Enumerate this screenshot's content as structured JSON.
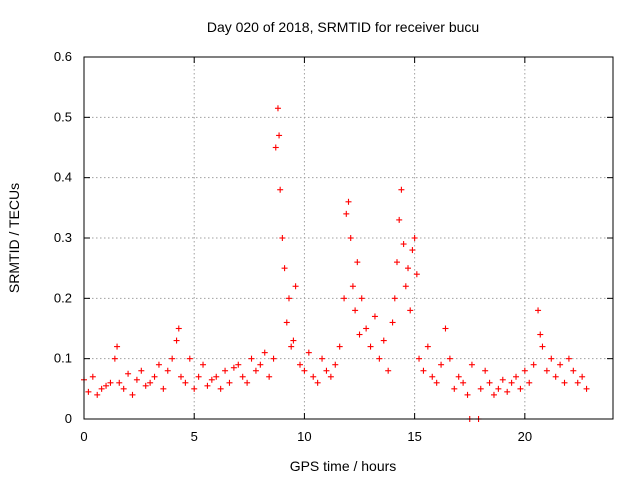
{
  "chart_data": {
    "type": "scatter",
    "title": "Day 020 of 2018, SRMTID for receiver bucu",
    "xlabel": "GPS time / hours",
    "ylabel": "SRMTID / TECUs",
    "xlim": [
      0,
      24
    ],
    "ylim": [
      0,
      0.6
    ],
    "xticks": [
      0,
      5,
      10,
      15,
      20
    ],
    "xtick_labels": [
      "0",
      "5",
      "10",
      "15",
      "20"
    ],
    "yticks": [
      0,
      0.1,
      0.2,
      0.3,
      0.4,
      0.5,
      0.6
    ],
    "ytick_labels": [
      "0",
      "0.1",
      "0.2",
      "0.3",
      "0.4",
      "0.5",
      "0.6"
    ],
    "grid": true,
    "marker": "+",
    "marker_color": "#ff0000",
    "series": [
      {
        "name": "SRMTID",
        "x": [
          0.0,
          0.2,
          0.4,
          0.6,
          0.8,
          1.0,
          1.2,
          1.4,
          1.5,
          1.6,
          1.8,
          2.0,
          2.2,
          2.4,
          2.6,
          2.8,
          3.0,
          3.2,
          3.4,
          3.6,
          3.8,
          4.0,
          4.2,
          4.3,
          4.4,
          4.6,
          4.8,
          5.0,
          5.2,
          5.4,
          5.6,
          5.8,
          6.0,
          6.2,
          6.4,
          6.6,
          6.8,
          7.0,
          7.2,
          7.4,
          7.6,
          7.8,
          8.0,
          8.2,
          8.4,
          8.6,
          8.7,
          8.8,
          8.85,
          8.9,
          9.0,
          9.1,
          9.2,
          9.3,
          9.4,
          9.5,
          9.6,
          9.8,
          10.0,
          10.2,
          10.4,
          10.6,
          10.8,
          11.0,
          11.2,
          11.4,
          11.6,
          11.8,
          11.9,
          12.0,
          12.1,
          12.2,
          12.3,
          12.4,
          12.5,
          12.6,
          12.8,
          13.0,
          13.2,
          13.4,
          13.6,
          13.8,
          14.0,
          14.1,
          14.2,
          14.3,
          14.4,
          14.5,
          14.6,
          14.7,
          14.8,
          14.9,
          15.0,
          15.1,
          15.2,
          15.4,
          15.6,
          15.8,
          16.0,
          16.2,
          16.4,
          16.6,
          16.8,
          17.0,
          17.2,
          17.4,
          17.5,
          17.6,
          17.9,
          18.0,
          18.2,
          18.4,
          18.6,
          18.8,
          19.0,
          19.2,
          19.4,
          19.6,
          19.8,
          20.0,
          20.2,
          20.4,
          20.6,
          20.7,
          20.8,
          21.0,
          21.2,
          21.4,
          21.6,
          21.8,
          22.0,
          22.2,
          22.4,
          22.6,
          22.8
        ],
        "y": [
          0.065,
          0.045,
          0.07,
          0.04,
          0.05,
          0.055,
          0.06,
          0.1,
          0.12,
          0.06,
          0.05,
          0.075,
          0.04,
          0.065,
          0.08,
          0.055,
          0.06,
          0.07,
          0.09,
          0.05,
          0.08,
          0.1,
          0.13,
          0.15,
          0.07,
          0.06,
          0.1,
          0.05,
          0.07,
          0.09,
          0.055,
          0.065,
          0.07,
          0.05,
          0.08,
          0.06,
          0.085,
          0.09,
          0.07,
          0.06,
          0.1,
          0.08,
          0.09,
          0.11,
          0.07,
          0.1,
          0.45,
          0.515,
          0.47,
          0.38,
          0.3,
          0.25,
          0.16,
          0.2,
          0.12,
          0.13,
          0.22,
          0.09,
          0.08,
          0.11,
          0.07,
          0.06,
          0.1,
          0.08,
          0.07,
          0.09,
          0.12,
          0.2,
          0.34,
          0.36,
          0.3,
          0.22,
          0.18,
          0.26,
          0.14,
          0.2,
          0.15,
          0.12,
          0.17,
          0.1,
          0.13,
          0.08,
          0.16,
          0.2,
          0.26,
          0.33,
          0.38,
          0.29,
          0.22,
          0.25,
          0.18,
          0.28,
          0.3,
          0.24,
          0.1,
          0.08,
          0.12,
          0.07,
          0.06,
          0.09,
          0.15,
          0.1,
          0.05,
          0.07,
          0.06,
          0.04,
          0.0,
          0.09,
          0.0,
          0.05,
          0.08,
          0.06,
          0.04,
          0.05,
          0.065,
          0.045,
          0.06,
          0.07,
          0.05,
          0.08,
          0.06,
          0.09,
          0.18,
          0.14,
          0.12,
          0.08,
          0.1,
          0.07,
          0.09,
          0.06,
          0.1,
          0.08,
          0.06,
          0.07,
          0.05
        ]
      }
    ]
  }
}
